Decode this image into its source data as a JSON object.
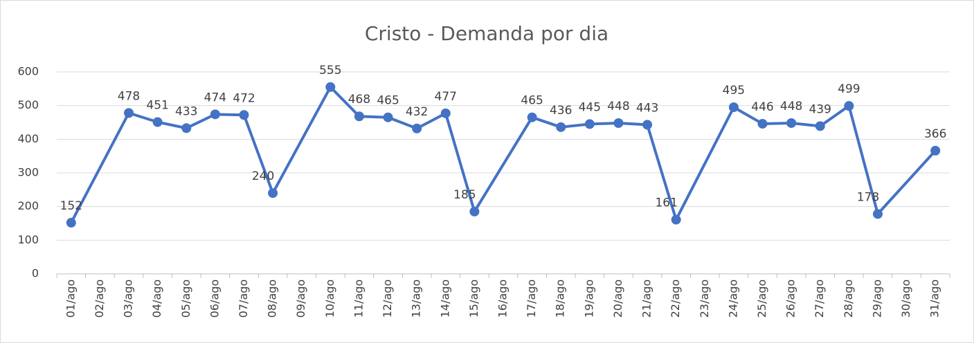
{
  "chart_data": {
    "type": "line",
    "title": "Cristo - Demanda por dia",
    "categories": [
      "01/ago",
      "02/ago",
      "03/ago",
      "04/ago",
      "05/ago",
      "06/ago",
      "07/ago",
      "08/ago",
      "09/ago",
      "10/ago",
      "11/ago",
      "12/ago",
      "13/ago",
      "14/ago",
      "15/ago",
      "16/ago",
      "17/ago",
      "18/ago",
      "19/ago",
      "20/ago",
      "21/ago",
      "22/ago",
      "23/ago",
      "24/ago",
      "25/ago",
      "26/ago",
      "27/ago",
      "28/ago",
      "29/ago",
      "30/ago",
      "31/ago"
    ],
    "values": [
      152,
      null,
      478,
      451,
      433,
      474,
      472,
      240,
      null,
      555,
      468,
      465,
      432,
      477,
      185,
      null,
      465,
      436,
      445,
      448,
      443,
      161,
      null,
      495,
      446,
      448,
      439,
      499,
      178,
      null,
      366
    ],
    "color": "#4472c4",
    "ylim": [
      0,
      600
    ],
    "yticks": [
      0,
      100,
      200,
      300,
      400,
      500,
      600
    ],
    "grid": true
  }
}
